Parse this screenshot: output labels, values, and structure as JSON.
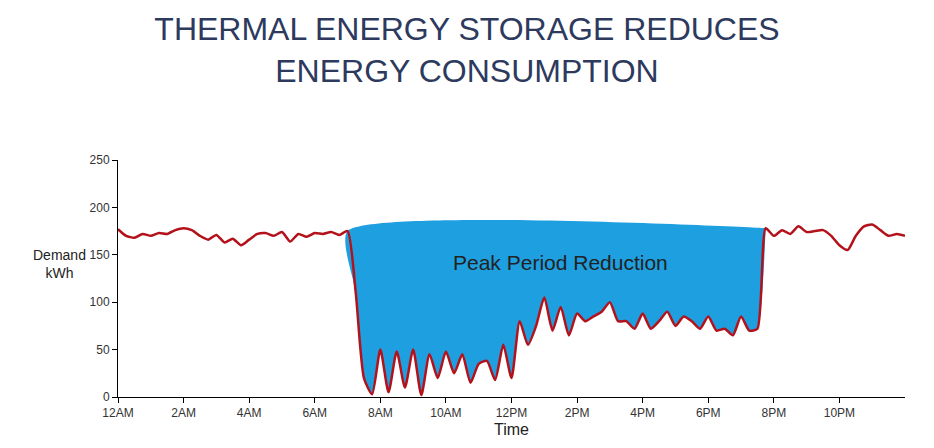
{
  "chart_data": {
    "type": "line",
    "title": "THERMAL ENERGY STORAGE REDUCES\nENERGY CONSUMPTION",
    "xlabel": "Time",
    "ylabel": "Demand\nkWh",
    "x": [
      0,
      0.25,
      0.5,
      0.75,
      1,
      1.25,
      1.5,
      1.75,
      2,
      2.25,
      2.5,
      2.75,
      3,
      3.25,
      3.5,
      3.75,
      4,
      4.25,
      4.5,
      4.75,
      5,
      5.25,
      5.5,
      5.75,
      6,
      6.25,
      6.5,
      6.75,
      7,
      7.25,
      7.5,
      7.75,
      8,
      8.25,
      8.5,
      8.75,
      9,
      9.25,
      9.5,
      9.75,
      10,
      10.25,
      10.5,
      10.75,
      11,
      11.25,
      11.5,
      11.75,
      12,
      12.25,
      12.5,
      12.75,
      13,
      13.25,
      13.5,
      13.75,
      14,
      14.25,
      14.5,
      14.75,
      15,
      15.25,
      15.5,
      15.75,
      16,
      16.25,
      16.5,
      16.75,
      17,
      17.25,
      17.5,
      17.75,
      18,
      18.25,
      18.5,
      18.75,
      19,
      19.25,
      19.5,
      19.75,
      20,
      20.25,
      20.5,
      20.75,
      21,
      21.25,
      21.5,
      21.75,
      22,
      22.25,
      22.5,
      22.75,
      23,
      23.25,
      23.5,
      23.75,
      24
    ],
    "series": [
      {
        "type": "line",
        "color": "#b3121b",
        "values": [
          177,
          170,
          168,
          172,
          170,
          173,
          172,
          176,
          178,
          176,
          170,
          166,
          171,
          163,
          167,
          160,
          166,
          172,
          173,
          170,
          174,
          164,
          172,
          169,
          173,
          172,
          174,
          171,
          175,
          110,
          20,
          3,
          50,
          5,
          48,
          10,
          50,
          2,
          45,
          20,
          48,
          25,
          45,
          15,
          35,
          38,
          18,
          55,
          20,
          80,
          55,
          75,
          105,
          70,
          95,
          65,
          88,
          80,
          85,
          90,
          100,
          80,
          80,
          72,
          88,
          72,
          80,
          90,
          75,
          85,
          80,
          72,
          85,
          70,
          72,
          65,
          85,
          70,
          72,
          178,
          170,
          176,
          172,
          180,
          174,
          175,
          176,
          170,
          160,
          155,
          170,
          180,
          182,
          176,
          170,
          172,
          170
        ]
      },
      {
        "type": "area",
        "color": "#1e9fe0",
        "x": [
          7,
          19.75
        ],
        "values": [
          175,
          178
        ]
      }
    ],
    "annotations": [
      {
        "text": "Peak Period Reduction",
        "x": 13.5,
        "y": 142
      }
    ],
    "xlim": [
      0,
      24
    ],
    "xticks": [
      {
        "value": 0,
        "label": "12AM"
      },
      {
        "value": 2,
        "label": "2AM"
      },
      {
        "value": 4,
        "label": "4AM"
      },
      {
        "value": 6,
        "label": "6AM"
      },
      {
        "value": 8,
        "label": "8AM"
      },
      {
        "value": 10,
        "label": "10AM"
      },
      {
        "value": 12,
        "label": "12PM"
      },
      {
        "value": 14,
        "label": "2PM"
      },
      {
        "value": 16,
        "label": "4PM"
      },
      {
        "value": 18,
        "label": "6PM"
      },
      {
        "value": 20,
        "label": "8PM"
      },
      {
        "value": 22,
        "label": "10PM"
      }
    ],
    "ylim": [
      0,
      250
    ],
    "yticks": [
      0,
      50,
      100,
      150,
      200,
      250
    ],
    "grid": false
  }
}
